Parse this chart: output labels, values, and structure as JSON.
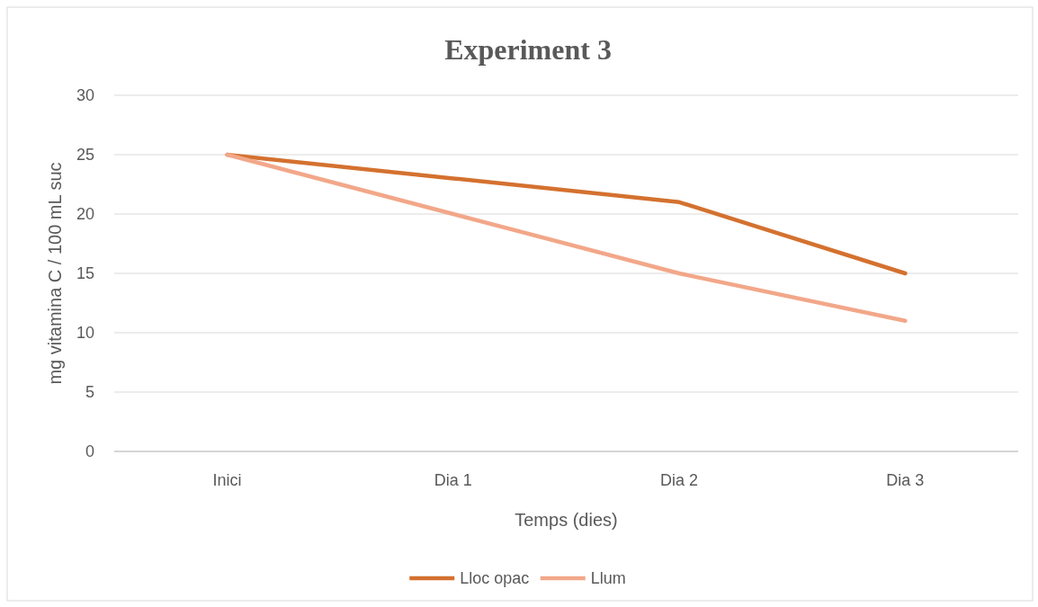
{
  "chart_data": {
    "type": "line",
    "title": "Experiment 3",
    "xlabel": "Temps (dies)",
    "ylabel": "mg vitamina C / 100 mL suc",
    "categories": [
      "Inici",
      "Dia 1",
      "Dia 2",
      "Dia 3"
    ],
    "series": [
      {
        "name": "Lloc opac",
        "color": "#d4712f",
        "values": [
          25,
          23,
          21,
          15
        ]
      },
      {
        "name": "Llum",
        "color": "#f2a789",
        "values": [
          25,
          20,
          15,
          11
        ]
      }
    ],
    "ylim": [
      0,
      30
    ],
    "yticks": [
      0,
      5,
      10,
      15,
      20,
      25,
      30
    ],
    "grid": "y",
    "legend": "bottom",
    "marker": "none"
  }
}
